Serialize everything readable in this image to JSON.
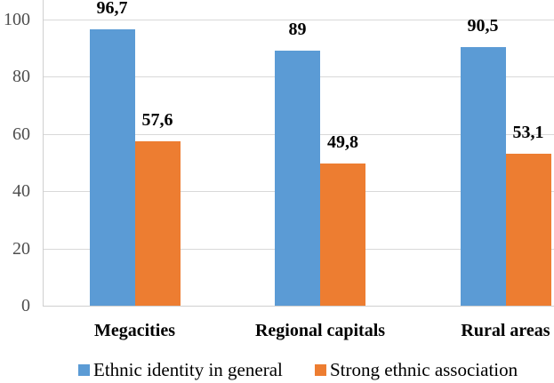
{
  "chart_data": {
    "type": "bar",
    "title": "",
    "categories": [
      "Megacities",
      "Regional capitals",
      "Rural areas"
    ],
    "series": [
      {
        "name": "Ethnic identity in general",
        "color": "#5B9BD5",
        "values": [
          96.7,
          89,
          90.5
        ],
        "value_labels": [
          "96,7",
          "89",
          "90,5"
        ]
      },
      {
        "name": "Strong ethnic association",
        "color": "#ED7D31",
        "values": [
          57.6,
          49.8,
          53.1
        ],
        "value_labels": [
          "57,6",
          "49,8",
          "53,1"
        ]
      }
    ],
    "y_axis": {
      "min": 0,
      "max": 100,
      "step": 20,
      "tick_labels": [
        "0",
        "20",
        "40",
        "60",
        "80",
        "100"
      ]
    },
    "ylim": [
      0,
      100
    ],
    "grid": true,
    "legend_position": "bottom",
    "decimal_separator": ","
  },
  "colors": {
    "series_blue": "#5B9BD5",
    "series_orange": "#ED7D31",
    "gridline": "#D9D9D9",
    "axis_line": "#CFCFCF",
    "tick_label_text": "#4D4D4D",
    "label_text": "#000000",
    "background": "#FFFFFF"
  }
}
